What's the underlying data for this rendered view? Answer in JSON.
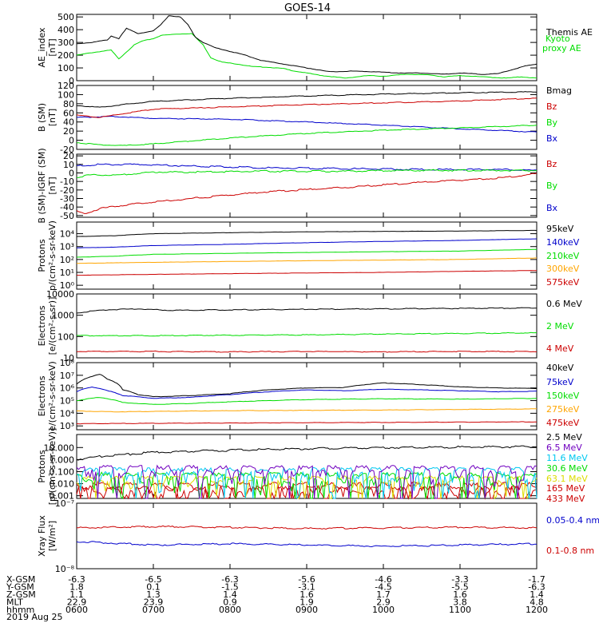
{
  "title": "GOES-14",
  "date": "2019 Aug 25",
  "colors": {
    "black": "#000000",
    "red": "#cc0000",
    "green": "#00dd00",
    "blue": "#0000cc",
    "orange": "#ffa500",
    "yellow": "#dddd00",
    "cyan": "#00c8f0",
    "purple": "#7000c0"
  },
  "time_axis": {
    "rows": [
      {
        "label": "X-GSM",
        "values": [
          "-6.3",
          "-6.5",
          "-6.3",
          "-5.6",
          "-4.6",
          "-3.3",
          "-1.7"
        ]
      },
      {
        "label": "Y-GSM",
        "values": [
          "1.8",
          "0.1",
          "-1.5",
          "-3.1",
          "-4.5",
          "-5.5",
          "-6.3"
        ]
      },
      {
        "label": "Z-GSM",
        "values": [
          "1.1",
          "1.3",
          "1.4",
          "1.6",
          "1.7",
          "1.6",
          "1.4"
        ]
      },
      {
        "label": "MLT",
        "values": [
          "22.9",
          "23.9",
          "0.9",
          "1.9",
          "2.9",
          "3.8",
          "4.8"
        ]
      },
      {
        "label": "hhmm",
        "values": [
          "0600",
          "0700",
          "0800",
          "0900",
          "1000",
          "1100",
          "1200"
        ]
      }
    ]
  },
  "chart_data": [
    {
      "type": "line",
      "ylabel": [
        "AE_index",
        "[nT]"
      ],
      "ylim": [
        0,
        520
      ],
      "yticks": [
        "0",
        "100",
        "200",
        "300",
        "400",
        "500"
      ],
      "series": [
        {
          "name": "Kyoto proxy AE",
          "color": "#00dd00",
          "x": [
            0,
            0.2,
            0.45,
            0.55,
            0.62,
            0.75,
            0.85,
            1.0,
            1.1,
            1.3,
            1.5,
            1.65,
            1.75,
            1.9,
            2.1,
            2.3,
            2.5,
            2.7,
            2.8,
            3.0,
            3.2,
            3.5,
            3.8,
            4.0,
            4.3,
            4.6,
            4.8,
            5.0,
            5.3,
            5.6,
            5.8,
            6.0
          ],
          "y": [
            200,
            220,
            240,
            170,
            210,
            280,
            310,
            330,
            355,
            365,
            370,
            280,
            180,
            145,
            130,
            110,
            105,
            95,
            80,
            60,
            40,
            20,
            40,
            35,
            50,
            45,
            30,
            40,
            30,
            20,
            30,
            20
          ]
        },
        {
          "name": "Themis AE",
          "color": "#000000",
          "x": [
            0,
            0.2,
            0.4,
            0.45,
            0.55,
            0.65,
            0.8,
            1.0,
            1.1,
            1.2,
            1.35,
            1.45,
            1.55,
            1.65,
            1.8,
            2.0,
            2.2,
            2.4,
            2.6,
            2.8,
            3.0,
            3.3,
            3.6,
            3.9,
            4.2,
            4.5,
            4.8,
            5.0,
            5.3,
            5.5,
            5.7,
            5.85,
            6.0
          ],
          "y": [
            290,
            300,
            320,
            350,
            330,
            410,
            370,
            390,
            440,
            510,
            500,
            440,
            340,
            300,
            260,
            230,
            200,
            160,
            140,
            120,
            100,
            70,
            75,
            70,
            60,
            60,
            50,
            60,
            50,
            55,
            90,
            115,
            130
          ]
        }
      ]
    },
    {
      "type": "line",
      "ylabel": [
        "B (SM)",
        "[nT]"
      ],
      "ylim": [
        -20,
        120
      ],
      "yticks": [
        "-20",
        "0",
        "20",
        "40",
        "60",
        "80",
        "100",
        "120"
      ],
      "series": [
        {
          "name": "Bx",
          "color": "#0000cc",
          "x": [
            0,
            0.5,
            1,
            2,
            3,
            4,
            5,
            6
          ],
          "y": [
            50,
            52,
            48,
            46,
            40,
            33,
            25,
            18
          ]
        },
        {
          "name": "By",
          "color": "#00dd00",
          "x": [
            0,
            0.3,
            0.6,
            1,
            2,
            3,
            4,
            5,
            6
          ],
          "y": [
            -5,
            -10,
            -12,
            -8,
            5,
            15,
            22,
            27,
            33
          ]
        },
        {
          "name": "Bz",
          "color": "#cc0000",
          "x": [
            0,
            0.3,
            0.6,
            1,
            2,
            3,
            4,
            5,
            6
          ],
          "y": [
            55,
            50,
            58,
            68,
            73,
            78,
            82,
            86,
            92
          ]
        },
        {
          "name": "Bmag",
          "color": "#000000",
          "x": [
            0,
            0.3,
            0.6,
            1,
            2,
            3,
            4,
            5,
            6
          ],
          "y": [
            76,
            72,
            78,
            85,
            92,
            97,
            101,
            104,
            106
          ]
        }
      ]
    },
    {
      "type": "line",
      "ylabel": [
        "B (SM)-IGRF (SM)",
        "[nT]"
      ],
      "ylim": [
        -52,
        22
      ],
      "yticks": [
        "-50",
        "-40",
        "-30",
        "-20",
        "-10",
        "0",
        "10",
        "20"
      ],
      "series": [
        {
          "name": "Bx",
          "color": "#0000cc",
          "x": [
            0,
            0.3,
            0.8,
            1.5,
            2.5,
            3.5,
            4.5,
            5.5,
            6
          ],
          "y": [
            8,
            10,
            10,
            8,
            6,
            5,
            4,
            4,
            3
          ]
        },
        {
          "name": "By",
          "color": "#00dd00",
          "x": [
            0,
            0.2,
            0.5,
            1,
            1.5,
            2.5,
            3.5,
            4.5,
            5.5,
            6
          ],
          "y": [
            -5,
            -2,
            -3,
            1,
            1,
            2,
            2,
            3,
            3,
            3
          ]
        },
        {
          "name": "Bz",
          "color": "#cc0000",
          "x": [
            0,
            0.1,
            0.3,
            0.6,
            1,
            1.5,
            2.5,
            3.5,
            4.5,
            5.5,
            6
          ],
          "y": [
            -45,
            -48,
            -42,
            -38,
            -34,
            -30,
            -22,
            -17,
            -11,
            -6,
            -1
          ]
        }
      ]
    },
    {
      "type": "line",
      "yscale": "log",
      "ylabel": [
        "Protons",
        "p/(cm²-s-sr-keV)"
      ],
      "ylim": [
        0.5,
        80000
      ],
      "yticks": [
        {
          "v": 1,
          "t": "10⁰"
        },
        {
          "v": 10,
          "t": "10¹"
        },
        {
          "v": 100,
          "t": "10²"
        },
        {
          "v": 1000,
          "t": "10³"
        },
        {
          "v": 10000,
          "t": "10⁴"
        }
      ],
      "series": [
        {
          "name": "575keV",
          "color": "#cc0000",
          "x": [
            0,
            1,
            2,
            3,
            4,
            5,
            6
          ],
          "y": [
            6,
            7,
            8,
            9,
            10,
            12,
            14
          ]
        },
        {
          "name": "300keV",
          "color": "#ffa500",
          "x": [
            0,
            1,
            2,
            3,
            4,
            5,
            6
          ],
          "y": [
            50,
            60,
            70,
            80,
            90,
            100,
            130
          ]
        },
        {
          "name": "210keV",
          "color": "#00dd00",
          "x": [
            0,
            0.5,
            1,
            2,
            3,
            4,
            5,
            6
          ],
          "y": [
            150,
            180,
            250,
            300,
            350,
            400,
            450,
            600
          ]
        },
        {
          "name": "140keV",
          "color": "#0000cc",
          "x": [
            0,
            0.5,
            1,
            2,
            3,
            4,
            5,
            6
          ],
          "y": [
            800,
            900,
            1200,
            1500,
            2000,
            2500,
            3000,
            4000
          ]
        },
        {
          "name": "95keV",
          "color": "#000000",
          "x": [
            0,
            0.5,
            1,
            2,
            3,
            4,
            5,
            6
          ],
          "y": [
            6000,
            7000,
            10000,
            12000,
            14000,
            15000,
            16000,
            18000
          ]
        }
      ]
    },
    {
      "type": "line",
      "yscale": "log",
      "ylabel": [
        "Electrons",
        "[e/(cm²-s-sr)]"
      ],
      "ylim": [
        10,
        10000
      ],
      "yticks": [
        {
          "v": 10,
          "t": "10"
        },
        {
          "v": 100,
          "t": "100"
        },
        {
          "v": 1000,
          "t": "1000"
        },
        {
          "v": 10000,
          "t": "10000"
        }
      ],
      "series": [
        {
          "name": "4 MeV",
          "color": "#cc0000",
          "x": [
            0,
            1,
            2,
            3,
            4,
            5,
            6
          ],
          "y": [
            20,
            20,
            19,
            20,
            19,
            20,
            20
          ]
        },
        {
          "name": "2 MeV",
          "color": "#00dd00",
          "x": [
            0,
            1,
            2,
            3,
            4,
            5,
            6
          ],
          "y": [
            110,
            110,
            115,
            120,
            130,
            140,
            150
          ]
        },
        {
          "name": "0.6 MeV",
          "color": "#000000",
          "x": [
            0,
            0.4,
            0.8,
            1.2,
            2,
            3,
            4,
            5,
            6
          ],
          "y": [
            1300,
            1800,
            2000,
            1700,
            1800,
            1900,
            2000,
            2100,
            2200
          ]
        }
      ]
    },
    {
      "type": "line",
      "yscale": "log",
      "ylabel": [
        "Electrons",
        "e/(cm²-s-sr-keV)"
      ],
      "ylim": [
        500,
        100000000
      ],
      "yticks": [
        {
          "v": 1000,
          "t": "10³"
        },
        {
          "v": 10000,
          "t": "10⁴"
        },
        {
          "v": 100000,
          "t": "10⁵"
        },
        {
          "v": 1000000,
          "t": "10⁶"
        },
        {
          "v": 10000000,
          "t": "10⁷"
        },
        {
          "v": 100000000,
          "t": "10⁸"
        }
      ],
      "series": [
        {
          "name": "475keV",
          "color": "#cc0000",
          "x": [
            0,
            1,
            2,
            3,
            4,
            5,
            6
          ],
          "y": [
            1500,
            1600,
            1700,
            1800,
            1900,
            2000,
            2100
          ]
        },
        {
          "name": "275keV",
          "color": "#ffa500",
          "x": [
            0,
            0.5,
            1,
            2,
            3,
            4,
            5,
            6
          ],
          "y": [
            15000,
            13000,
            14000,
            16000,
            17000,
            18000,
            20000,
            22000
          ]
        },
        {
          "name": "150keV",
          "color": "#00dd00",
          "x": [
            0,
            0.3,
            0.6,
            1,
            1.5,
            2,
            3,
            4,
            5,
            6
          ],
          "y": [
            100000,
            180000,
            70000,
            50000,
            60000,
            80000,
            120000,
            140000,
            130000,
            150000
          ]
        },
        {
          "name": "75keV",
          "color": "#0000cc",
          "x": [
            0,
            0.2,
            0.4,
            0.6,
            1,
            1.5,
            2,
            2.5,
            3,
            3.5,
            4,
            4.5,
            5,
            5.5,
            6
          ],
          "y": [
            500000,
            1200000,
            600000,
            250000,
            150000,
            180000,
            300000,
            500000,
            700000,
            600000,
            800000,
            700000,
            600000,
            500000,
            550000
          ]
        },
        {
          "name": "40keV",
          "color": "#000000",
          "x": [
            0,
            0.2,
            0.3,
            0.4,
            0.6,
            0.8,
            1,
            1.5,
            2,
            2.5,
            3,
            3.5,
            4,
            4.5,
            5,
            5.5,
            6
          ],
          "y": [
            2000000,
            8000000,
            12000000,
            5000000,
            700000,
            300000,
            200000,
            250000,
            350000,
            700000,
            1000000,
            1100000,
            2500000,
            1800000,
            1200000,
            1000000,
            900000
          ]
        }
      ]
    },
    {
      "type": "line",
      "yscale": "log",
      "ylabel": [
        "Protons",
        "[p/(cm²-s-sr-keV)]"
      ],
      "ylim": [
        0.0006,
        120
      ],
      "yticks": [
        {
          "v": 0.001,
          "t": "0.001"
        },
        {
          "v": 0.01,
          "t": "0.010"
        },
        {
          "v": 0.1,
          "t": "0.100"
        },
        {
          "v": 1,
          "t": "1.000"
        },
        {
          "v": 10,
          "t": "10.000"
        }
      ],
      "series": [
        {
          "name": "433 MeV",
          "color": "#cc0000",
          "x": [
            0,
            6
          ],
          "y": [
            0.003,
            0.003
          ]
        },
        {
          "name": "165 MeV",
          "color": "#cc0000",
          "x": [
            0,
            6
          ],
          "y": [
            0.006,
            0.006
          ]
        },
        {
          "name": "63.1 MeV",
          "color": "#dddd00",
          "x": [
            0,
            6
          ],
          "y": [
            0.02,
            0.02
          ]
        },
        {
          "name": "30.6 MeV",
          "color": "#00dd00",
          "x": [
            0,
            6
          ],
          "y": [
            0.04,
            0.04
          ]
        },
        {
          "name": "11.6 MeV",
          "color": "#00c8f0",
          "x": [
            0,
            6
          ],
          "y": [
            0.1,
            0.1
          ]
        },
        {
          "name": "6.5 MeV",
          "color": "#7000c0",
          "x": [
            0,
            6
          ],
          "y": [
            0.15,
            0.15
          ]
        },
        {
          "name": "2.5 MeV",
          "color": "#000000",
          "x": [
            0,
            0.3,
            0.6,
            1,
            1.5,
            2,
            3,
            4,
            5,
            6
          ],
          "y": [
            1.0,
            1.8,
            2.5,
            4,
            5,
            6,
            8,
            10,
            11,
            12
          ]
        }
      ]
    },
    {
      "type": "line",
      "yscale": "log",
      "ylabel": [
        "Xray Flux",
        "[W/m²]"
      ],
      "ylim": [
        1e-08,
        1e-07
      ],
      "yticks": [
        {
          "v": 1e-08,
          "t": "10⁻⁸"
        },
        {
          "v": 1e-07,
          "t": "10⁻⁷"
        }
      ],
      "series": [
        {
          "name": "0.1-0.8 nm",
          "color": "#cc0000",
          "x": [
            0,
            1,
            2,
            3,
            4,
            5,
            6
          ],
          "y": [
            4.2e-08,
            4.4e-08,
            4.3e-08,
            4.1e-08,
            4.2e-08,
            4.3e-08,
            4.2e-08
          ]
        },
        {
          "name": "0.05-0.4 nm",
          "color": "#0000cc",
          "x": [
            0,
            1,
            2,
            3,
            4,
            5,
            6
          ],
          "y": [
            2.6e-08,
            2.3e-08,
            2.4e-08,
            2.3e-08,
            2.2e-08,
            2.3e-08,
            2.4e-08
          ]
        }
      ]
    }
  ]
}
